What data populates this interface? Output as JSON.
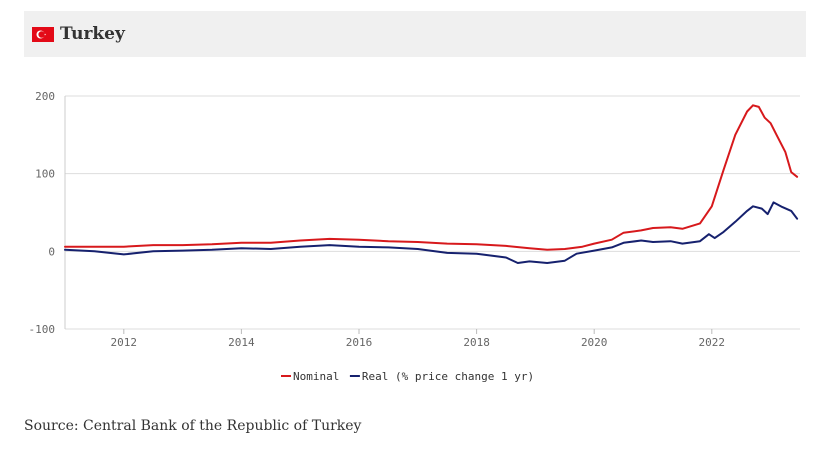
{
  "header": {
    "title": "Turkey",
    "flag_icon": "turkey-flag-icon",
    "flag_color": "#e30a17"
  },
  "source": "Source: Central Bank of the Republic of Turkey",
  "chart_data": {
    "type": "line",
    "title": "Turkey",
    "xlabel": "",
    "ylabel": "",
    "xlim": [
      2011.0,
      2023.5
    ],
    "ylim": [
      -100,
      200
    ],
    "yticks": [
      200,
      100,
      0,
      -100
    ],
    "xticks": [
      2012,
      2014,
      2016,
      2018,
      2020,
      2022
    ],
    "grid": true,
    "legend_position": "bottom-center",
    "series": [
      {
        "name": "Nominal",
        "color": "#d7191c",
        "points": [
          [
            2011.0,
            6
          ],
          [
            2011.5,
            6
          ],
          [
            2012.0,
            6
          ],
          [
            2012.5,
            8
          ],
          [
            2013.0,
            8
          ],
          [
            2013.5,
            9
          ],
          [
            2014.0,
            11
          ],
          [
            2014.5,
            11
          ],
          [
            2015.0,
            14
          ],
          [
            2015.5,
            16
          ],
          [
            2016.0,
            15
          ],
          [
            2016.5,
            13
          ],
          [
            2017.0,
            12
          ],
          [
            2017.5,
            10
          ],
          [
            2018.0,
            9
          ],
          [
            2018.5,
            7
          ],
          [
            2018.9,
            4
          ],
          [
            2019.2,
            2
          ],
          [
            2019.5,
            3
          ],
          [
            2019.8,
            6
          ],
          [
            2020.0,
            10
          ],
          [
            2020.3,
            15
          ],
          [
            2020.5,
            24
          ],
          [
            2020.8,
            27
          ],
          [
            2021.0,
            30
          ],
          [
            2021.3,
            31
          ],
          [
            2021.5,
            29
          ],
          [
            2021.8,
            36
          ],
          [
            2022.0,
            58
          ],
          [
            2022.2,
            105
          ],
          [
            2022.4,
            150
          ],
          [
            2022.6,
            180
          ],
          [
            2022.7,
            188
          ],
          [
            2022.8,
            186
          ],
          [
            2022.9,
            172
          ],
          [
            2023.0,
            165
          ],
          [
            2023.1,
            150
          ],
          [
            2023.25,
            128
          ],
          [
            2023.35,
            102
          ],
          [
            2023.45,
            96
          ]
        ]
      },
      {
        "name": "Real (% price change 1 yr)",
        "color": "#16216e",
        "points": [
          [
            2011.0,
            2
          ],
          [
            2011.5,
            0
          ],
          [
            2012.0,
            -4
          ],
          [
            2012.5,
            0
          ],
          [
            2013.0,
            1
          ],
          [
            2013.5,
            2
          ],
          [
            2014.0,
            4
          ],
          [
            2014.5,
            3
          ],
          [
            2015.0,
            6
          ],
          [
            2015.5,
            8
          ],
          [
            2016.0,
            6
          ],
          [
            2016.5,
            5
          ],
          [
            2017.0,
            3
          ],
          [
            2017.5,
            -2
          ],
          [
            2018.0,
            -3
          ],
          [
            2018.5,
            -8
          ],
          [
            2018.7,
            -15
          ],
          [
            2018.9,
            -13
          ],
          [
            2019.2,
            -15
          ],
          [
            2019.5,
            -12
          ],
          [
            2019.7,
            -3
          ],
          [
            2020.0,
            1
          ],
          [
            2020.3,
            5
          ],
          [
            2020.5,
            11
          ],
          [
            2020.8,
            14
          ],
          [
            2021.0,
            12
          ],
          [
            2021.3,
            13
          ],
          [
            2021.5,
            10
          ],
          [
            2021.8,
            13
          ],
          [
            2021.95,
            22
          ],
          [
            2022.05,
            17
          ],
          [
            2022.2,
            25
          ],
          [
            2022.4,
            38
          ],
          [
            2022.6,
            52
          ],
          [
            2022.7,
            58
          ],
          [
            2022.85,
            55
          ],
          [
            2022.95,
            48
          ],
          [
            2023.05,
            63
          ],
          [
            2023.2,
            57
          ],
          [
            2023.35,
            52
          ],
          [
            2023.45,
            42
          ]
        ]
      }
    ]
  }
}
